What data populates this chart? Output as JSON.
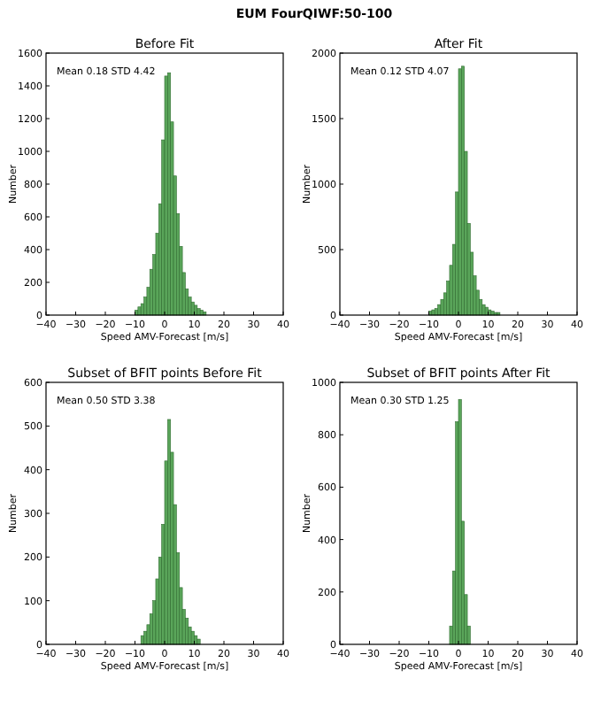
{
  "chart_data": [
    {
      "type": "histogram",
      "subtitle": "EUM FourQIWF:50-100",
      "title": "Before Fit",
      "xlabel": "Speed AMV-Forecast [m/s]",
      "ylabel": "Number",
      "annotations": [
        "Mean 0.18 STD 4.42"
      ],
      "color": "#5aa55a",
      "bins": [
        -10,
        -9,
        -8,
        -7,
        -6,
        -5,
        -4,
        -3,
        -2,
        -1,
        0,
        1,
        2,
        3,
        4,
        5,
        6,
        7,
        8,
        9,
        10,
        11,
        12,
        13,
        14
      ],
      "values": [
        30,
        50,
        70,
        110,
        170,
        280,
        370,
        500,
        680,
        1070,
        1460,
        1480,
        1180,
        850,
        620,
        420,
        260,
        160,
        110,
        80,
        60,
        40,
        30,
        20
      ],
      "xlim": [
        -40,
        40
      ],
      "xticks": [
        -40,
        -30,
        -20,
        -10,
        0,
        10,
        20,
        30,
        40
      ],
      "ylim": [
        0,
        1600
      ],
      "yticks": [
        0,
        200,
        400,
        600,
        800,
        1000,
        1200,
        1400,
        1600
      ]
    },
    {
      "type": "histogram",
      "title": "After Fit",
      "xlabel": "Speed AMV-Forecast [m/s]",
      "ylabel": "Number",
      "annotations": [
        "Mean 0.12 STD 4.07"
      ],
      "color": "#5aa55a",
      "bins": [
        -10,
        -9,
        -8,
        -7,
        -6,
        -5,
        -4,
        -3,
        -2,
        -1,
        0,
        1,
        2,
        3,
        4,
        5,
        6,
        7,
        8,
        9,
        10,
        11,
        12,
        13,
        14
      ],
      "values": [
        30,
        40,
        50,
        80,
        120,
        170,
        260,
        380,
        540,
        940,
        1880,
        1900,
        1250,
        700,
        480,
        300,
        190,
        120,
        80,
        60,
        40,
        30,
        20,
        20
      ],
      "xlim": [
        -40,
        40
      ],
      "xticks": [
        -40,
        -30,
        -20,
        -10,
        0,
        10,
        20,
        30,
        40
      ],
      "ylim": [
        0,
        2000
      ],
      "yticks": [
        0,
        500,
        1000,
        1500,
        2000
      ]
    },
    {
      "type": "histogram",
      "title": "Subset of BFIT points Before Fit",
      "xlabel": "Speed AMV-Forecast [m/s]",
      "ylabel": "Number",
      "annotations": [
        "Mean 0.50 STD 3.38"
      ],
      "color": "#5aa55a",
      "bins": [
        -8,
        -7,
        -6,
        -5,
        -4,
        -3,
        -2,
        -1,
        0,
        1,
        2,
        3,
        4,
        5,
        6,
        7,
        8,
        9,
        10,
        11,
        12
      ],
      "values": [
        20,
        30,
        45,
        70,
        100,
        150,
        200,
        275,
        420,
        515,
        440,
        320,
        210,
        130,
        80,
        60,
        40,
        30,
        20,
        12
      ],
      "xlim": [
        -40,
        40
      ],
      "xticks": [
        -40,
        -30,
        -20,
        -10,
        0,
        10,
        20,
        30,
        40
      ],
      "ylim": [
        0,
        600
      ],
      "yticks": [
        0,
        100,
        200,
        300,
        400,
        500,
        600
      ]
    },
    {
      "type": "histogram",
      "title": "Subset of BFIT points After Fit",
      "xlabel": "Speed AMV-Forecast [m/s]",
      "ylabel": "Number",
      "annotations": [
        "Mean 0.30 STD 1.25"
      ],
      "color": "#5aa55a",
      "bins": [
        -3,
        -2,
        -1,
        0,
        1,
        2,
        3,
        4
      ],
      "values": [
        70,
        280,
        850,
        935,
        470,
        190,
        70
      ],
      "xlim": [
        -40,
        40
      ],
      "xticks": [
        -40,
        -30,
        -20,
        -10,
        0,
        10,
        20,
        30,
        40
      ],
      "ylim": [
        0,
        1000
      ],
      "yticks": [
        0,
        200,
        400,
        600,
        800,
        1000
      ]
    }
  ]
}
